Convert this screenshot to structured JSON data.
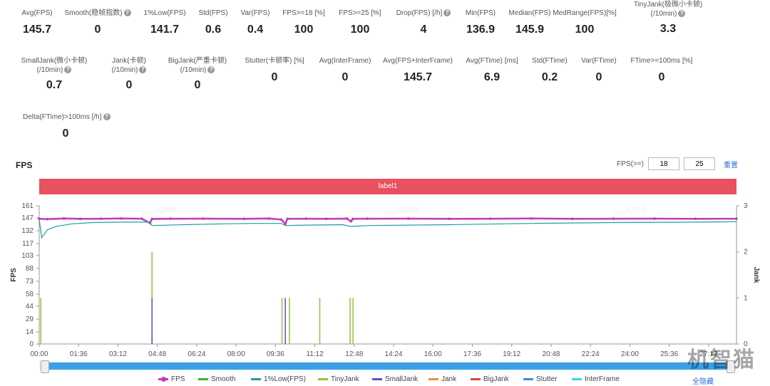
{
  "metrics_row1": [
    {
      "label": "Avg(FPS)",
      "value": "145.7",
      "help": false
    },
    {
      "label": "Smooth(稳帧指数)",
      "value": "0",
      "help": true
    },
    {
      "label": "1%Low(FPS)",
      "value": "141.7",
      "help": false
    },
    {
      "label": "Std(FPS)",
      "value": "0.6",
      "help": false
    },
    {
      "label": "Var(FPS)",
      "value": "0.4",
      "help": false
    },
    {
      "label": "FPS>=18 [%]",
      "value": "100",
      "help": false
    },
    {
      "label": "FPS>=25 [%]",
      "value": "100",
      "help": false
    },
    {
      "label": "Drop(FPS) [/h]",
      "value": "4",
      "help": true
    },
    {
      "label": "Min(FPS)",
      "value": "136.9",
      "help": false
    },
    {
      "label": "Median(FPS)",
      "value": "145.9",
      "help": false
    },
    {
      "label": "MedRange(FPS)[%]",
      "value": "100",
      "help": false
    },
    {
      "label": "TinyJank(极微小卡顿)",
      "label2": "(/10min)",
      "value": "3.3",
      "help": true
    }
  ],
  "metrics_row2": [
    {
      "label": "SmallJank(微小卡顿)",
      "label2": "(/10min)",
      "value": "0.7",
      "help": true
    },
    {
      "label": "Jank(卡顿)",
      "label2": "(/10min)",
      "value": "0",
      "help": true
    },
    {
      "label": "BigJank(严重卡顿)",
      "label2": "(/10min)",
      "value": "0",
      "help": true
    },
    {
      "label": "Stutter(卡顿率) [%]",
      "value": "0",
      "help": false
    },
    {
      "label": "Avg(InterFrame)",
      "value": "0",
      "help": false
    },
    {
      "label": "Avg(FPS+InterFrame)",
      "value": "145.7",
      "help": false
    },
    {
      "label": "Avg(FTime) [ms]",
      "value": "6.9",
      "help": false
    },
    {
      "label": "Std(FTime)",
      "value": "0.2",
      "help": false
    },
    {
      "label": "Var(FTime)",
      "value": "0",
      "help": false
    },
    {
      "label": "FTime>=100ms [%]",
      "value": "0",
      "help": false
    }
  ],
  "metrics_row3": [
    {
      "label": "Delta(FTime)>100ms [/h]",
      "value": "0",
      "help": true
    }
  ],
  "section_title": "FPS",
  "threshold": {
    "label": "FPS(>=)",
    "value1": "18",
    "value2": "25",
    "reset": "重置"
  },
  "label_bar": "label1",
  "watermark": "PerfDog",
  "corner_watermark": "机智猫",
  "legend": [
    {
      "name": "FPS",
      "color": "#c23ab8",
      "dot": true
    },
    {
      "name": "Smooth",
      "color": "#3fae3f",
      "dot": false
    },
    {
      "name": "1%Low(FPS)",
      "color": "#1e9ea0",
      "dot": false
    },
    {
      "name": "TinyJank",
      "color": "#8dc63f",
      "dot": false
    },
    {
      "name": "SmallJank",
      "color": "#5b4fc8",
      "dot": false
    },
    {
      "name": "Jank",
      "color": "#f08a3c",
      "dot": false
    },
    {
      "name": "BigJank",
      "color": "#e0403c",
      "dot": false
    },
    {
      "name": "Stutter",
      "color": "#4a86d8",
      "dot": false
    },
    {
      "name": "InterFrame",
      "color": "#3fd2e0",
      "dot": false
    }
  ],
  "hide_all": "全隐藏",
  "chart_data": {
    "type": "line",
    "title": "FPS",
    "ylabel": "FPS",
    "y2label": "Jank",
    "yticks": [
      0,
      14,
      29,
      44,
      58,
      73,
      88,
      103,
      117,
      132,
      147,
      161
    ],
    "ylim": [
      0,
      161
    ],
    "y2ticks": [
      0,
      1,
      2,
      3
    ],
    "y2lim": [
      0,
      3
    ],
    "xticks": [
      "00:00",
      "01:36",
      "03:12",
      "04:48",
      "06:24",
      "08:00",
      "09:36",
      "11:12",
      "12:48",
      "14:24",
      "16:00",
      "17:36",
      "19:12",
      "20:48",
      "22:24",
      "24:00",
      "25:36",
      "27:12"
    ],
    "xlim_sec": [
      0,
      1700
    ],
    "series": [
      {
        "name": "FPS",
        "color": "#c23ab8",
        "points": [
          [
            0,
            146
          ],
          [
            20,
            145.5
          ],
          [
            60,
            146.2
          ],
          [
            100,
            145.8
          ],
          [
            150,
            146
          ],
          [
            200,
            146.3
          ],
          [
            250,
            146
          ],
          [
            270,
            141
          ],
          [
            275,
            145.7
          ],
          [
            320,
            146
          ],
          [
            400,
            146.1
          ],
          [
            500,
            145.9
          ],
          [
            560,
            146.2
          ],
          [
            590,
            145
          ],
          [
            600,
            140
          ],
          [
            605,
            145.8
          ],
          [
            650,
            146
          ],
          [
            700,
            145.9
          ],
          [
            750,
            146.1
          ],
          [
            760,
            143
          ],
          [
            765,
            145.8
          ],
          [
            800,
            146
          ],
          [
            900,
            146.1
          ],
          [
            1000,
            145.9
          ],
          [
            1100,
            146
          ],
          [
            1200,
            146.2
          ],
          [
            1300,
            145.9
          ],
          [
            1400,
            146
          ],
          [
            1500,
            146.1
          ],
          [
            1600,
            145.9
          ],
          [
            1700,
            146
          ]
        ]
      },
      {
        "name": "1%Low(FPS)",
        "color": "#1e9ea0",
        "points": [
          [
            0,
            145
          ],
          [
            6,
            124
          ],
          [
            20,
            133
          ],
          [
            40,
            137
          ],
          [
            80,
            140
          ],
          [
            130,
            141.5
          ],
          [
            200,
            142
          ],
          [
            270,
            142
          ],
          [
            275,
            138
          ],
          [
            350,
            139
          ],
          [
            450,
            140
          ],
          [
            520,
            140.5
          ],
          [
            590,
            140.5
          ],
          [
            600,
            138
          ],
          [
            650,
            138.5
          ],
          [
            740,
            139
          ],
          [
            760,
            137
          ],
          [
            800,
            138
          ],
          [
            1000,
            139
          ],
          [
            1200,
            140.5
          ],
          [
            1400,
            141.5
          ],
          [
            1600,
            142
          ],
          [
            1700,
            142.5
          ]
        ]
      },
      {
        "name": "TinyJank",
        "color": "#8dc63f",
        "spikes": [
          [
            4,
            1
          ],
          [
            275,
            2
          ],
          [
            592,
            1
          ],
          [
            610,
            1
          ],
          [
            684,
            1
          ],
          [
            758,
            1
          ],
          [
            765,
            1
          ]
        ]
      },
      {
        "name": "SmallJank",
        "color": "#5b4fc8",
        "spikes": [
          [
            275,
            1
          ],
          [
            600,
            1
          ]
        ]
      }
    ]
  }
}
